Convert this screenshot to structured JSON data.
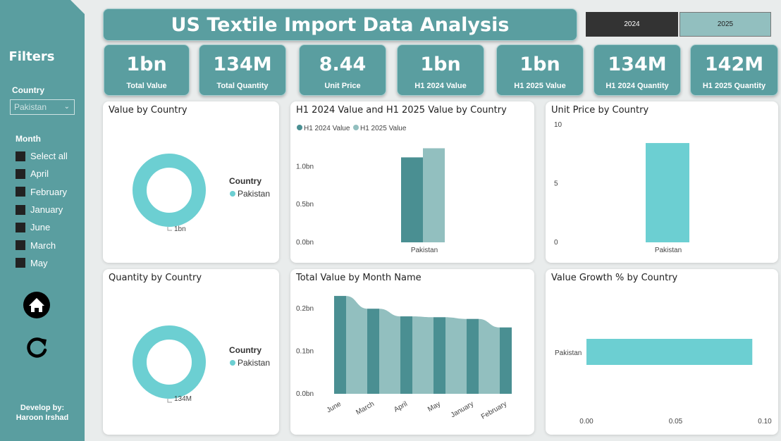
{
  "sidebar": {
    "title": "Filters",
    "country_label": "Country",
    "country_selected": "Pakistan",
    "month_label": "Month",
    "months": [
      "Select all",
      "April",
      "February",
      "January",
      "June",
      "March",
      "May"
    ],
    "developer_line1": "Develop by:",
    "developer_line2": "Haroon Irshad",
    "home_icon": "home-icon",
    "refresh_icon": "refresh-icon"
  },
  "header": {
    "title": "US Textile Import Data Analysis",
    "year_buttons": [
      "2024",
      "2025"
    ]
  },
  "kpis": [
    {
      "value": "1bn",
      "label": "Total Value"
    },
    {
      "value": "134M",
      "label": "Total Quantity"
    },
    {
      "value": "8.44",
      "label": "Unit Price"
    },
    {
      "value": "1bn",
      "label": "H1 2024 Value"
    },
    {
      "value": "1bn",
      "label": "H1 2025 Value"
    },
    {
      "value": "134M",
      "label": "H1 2024 Quantity"
    },
    {
      "value": "142M",
      "label": "H1 2025 Quantity"
    }
  ],
  "colors": {
    "accent": "#5a9ea0",
    "teal_light": "#6ccfd2",
    "series_dark": "#4a8f92",
    "series_light": "#92bfbf"
  },
  "chart_data": [
    {
      "type": "pie",
      "title": "Value by Country",
      "legend_title": "Country",
      "categories": [
        "Pakistan"
      ],
      "values": [
        1
      ],
      "data_label": "1bn"
    },
    {
      "type": "bar",
      "title": "H1 2024 Value and H1 2025 Value by Country",
      "categories": [
        "Pakistan"
      ],
      "series": [
        {
          "name": "H1 2024 Value",
          "values": [
            1.12
          ]
        },
        {
          "name": "H1 2025 Value",
          "values": [
            1.24
          ]
        }
      ],
      "ylim": [
        0,
        1.3
      ],
      "yticks": [
        "0.0bn",
        "0.5bn",
        "1.0bn"
      ],
      "ytick_values": [
        0,
        0.5,
        1.0
      ]
    },
    {
      "type": "bar",
      "title": "Unit Price by Country",
      "categories": [
        "Pakistan"
      ],
      "values": [
        8.44
      ],
      "ylim": [
        0,
        10
      ],
      "yticks": [
        "0",
        "5",
        "10"
      ],
      "ytick_values": [
        0,
        5,
        10
      ]
    },
    {
      "type": "pie",
      "title": "Quantity by Country",
      "legend_title": "Country",
      "categories": [
        "Pakistan"
      ],
      "values": [
        134
      ],
      "data_label": "134M"
    },
    {
      "type": "bar",
      "title": "Total Value by Month Name",
      "categories": [
        "June",
        "March",
        "April",
        "May",
        "January",
        "February"
      ],
      "values": [
        0.23,
        0.2,
        0.182,
        0.18,
        0.176,
        0.156
      ],
      "ylim": [
        0,
        0.25
      ],
      "yticks": [
        "0.0bn",
        "0.1bn",
        "0.2bn"
      ],
      "ytick_values": [
        0,
        0.1,
        0.2
      ]
    },
    {
      "type": "bar",
      "title": "Value Growth % by Country",
      "categories": [
        "Pakistan"
      ],
      "values": [
        0.093
      ],
      "xlim": [
        0,
        0.1
      ],
      "xticks": [
        "0.00",
        "0.05",
        "0.10"
      ],
      "xtick_values": [
        0,
        0.05,
        0.1
      ]
    }
  ]
}
